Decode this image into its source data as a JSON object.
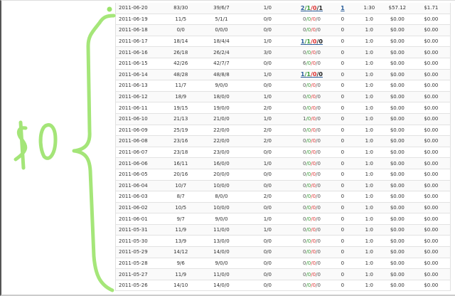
{
  "annotation": {
    "text": "$0",
    "color": "#9be36a"
  },
  "rows": [
    {
      "date": "2011-06-20",
      "c2": "83/30",
      "c3": "39/6/7",
      "c4": "1/0",
      "c5": [
        "2",
        "1",
        "0",
        "1"
      ],
      "c5_link": true,
      "c6": "1",
      "c6_link": true,
      "c7": "1:30",
      "c8": "$57.12",
      "c9": "$1.71"
    },
    {
      "date": "2011-06-19",
      "c2": "11/5",
      "c3": "5/1/1",
      "c4": "0/0",
      "c5": [
        "0",
        "0",
        "0",
        "0"
      ],
      "c6": "0",
      "c7": "1:0",
      "c8": "$0.00",
      "c9": "$0.00"
    },
    {
      "date": "2011-06-18",
      "c2": "0/0",
      "c3": "0/0/0",
      "c4": "0/0",
      "c5": [
        "0",
        "0",
        "0",
        "0"
      ],
      "c6": "0",
      "c7": "1:0",
      "c8": "$0.00",
      "c9": "$0.00"
    },
    {
      "date": "2011-06-17",
      "c2": "18/14",
      "c3": "18/4/4",
      "c4": "1/0",
      "c5": [
        "1",
        "1",
        "0",
        "0"
      ],
      "c5_link": true,
      "c6": "0",
      "c7": "1:0",
      "c8": "$0.00",
      "c9": "$0.00"
    },
    {
      "date": "2011-06-16",
      "c2": "26/18",
      "c3": "26/2/4",
      "c4": "3/0",
      "c5": [
        "0",
        "0",
        "0",
        "0"
      ],
      "c6": "0",
      "c7": "1:0",
      "c8": "$0.00",
      "c9": "$0.00"
    },
    {
      "date": "2011-06-15",
      "c2": "42/26",
      "c3": "42/7/7",
      "c4": "0/0",
      "c5": [
        "6",
        "0",
        "0",
        "0"
      ],
      "c6": "0",
      "c7": "1:0",
      "c8": "$0.00",
      "c9": "$0.00"
    },
    {
      "date": "2011-06-14",
      "c2": "48/28",
      "c3": "48/8/8",
      "c4": "1/0",
      "c5": [
        "1",
        "1",
        "0",
        "0"
      ],
      "c5_link": true,
      "c6": "0",
      "c7": "1:0",
      "c8": "$0.00",
      "c9": "$0.00"
    },
    {
      "date": "2011-06-13",
      "c2": "11/7",
      "c3": "9/0/0",
      "c4": "0/0",
      "c5": [
        "0",
        "0",
        "0",
        "0"
      ],
      "c6": "0",
      "c7": "1:0",
      "c8": "$0.00",
      "c9": "$0.00"
    },
    {
      "date": "2011-06-12",
      "c2": "18/9",
      "c3": "18/0/0",
      "c4": "1/0",
      "c5": [
        "0",
        "0",
        "0",
        "0"
      ],
      "c6": "0",
      "c7": "1:0",
      "c8": "$0.00",
      "c9": "$0.00"
    },
    {
      "date": "2011-06-11",
      "c2": "19/15",
      "c3": "19/0/0",
      "c4": "2/0",
      "c5": [
        "0",
        "0",
        "0",
        "0"
      ],
      "c6": "0",
      "c7": "1:0",
      "c8": "$0.00",
      "c9": "$0.00"
    },
    {
      "date": "2011-06-10",
      "c2": "21/13",
      "c3": "21/0/0",
      "c4": "1/0",
      "c5": [
        "1",
        "0",
        "0",
        "0"
      ],
      "c6": "0",
      "c7": "1:0",
      "c8": "$0.00",
      "c9": "$0.00"
    },
    {
      "date": "2011-06-09",
      "c2": "25/19",
      "c3": "22/0/0",
      "c4": "2/0",
      "c5": [
        "0",
        "0",
        "0",
        "0"
      ],
      "c6": "0",
      "c7": "1:0",
      "c8": "$0.00",
      "c9": "$0.00"
    },
    {
      "date": "2011-06-08",
      "c2": "23/16",
      "c3": "22/0/0",
      "c4": "2/0",
      "c5": [
        "0",
        "0",
        "0",
        "0"
      ],
      "c6": "0",
      "c7": "1:0",
      "c8": "$0.00",
      "c9": "$0.00"
    },
    {
      "date": "2011-06-07",
      "c2": "23/18",
      "c3": "23/0/0",
      "c4": "0/0",
      "c5": [
        "0",
        "0",
        "0",
        "0"
      ],
      "c6": "0",
      "c7": "1:0",
      "c8": "$0.00",
      "c9": "$0.00"
    },
    {
      "date": "2011-06-06",
      "c2": "16/11",
      "c3": "16/0/0",
      "c4": "1/0",
      "c5": [
        "0",
        "0",
        "0",
        "0"
      ],
      "c6": "0",
      "c7": "1:0",
      "c8": "$0.00",
      "c9": "$0.00"
    },
    {
      "date": "2011-06-05",
      "c2": "20/16",
      "c3": "20/0/0",
      "c4": "0/0",
      "c5": [
        "0",
        "0",
        "0",
        "0"
      ],
      "c6": "0",
      "c7": "1:0",
      "c8": "$0.00",
      "c9": "$0.00"
    },
    {
      "date": "2011-06-04",
      "c2": "10/7",
      "c3": "10/0/0",
      "c4": "0/0",
      "c5": [
        "0",
        "0",
        "0",
        "0"
      ],
      "c6": "0",
      "c7": "1:0",
      "c8": "$0.00",
      "c9": "$0.00"
    },
    {
      "date": "2011-06-03",
      "c2": "8/7",
      "c3": "8/0/0",
      "c4": "2/0",
      "c5": [
        "0",
        "0",
        "0",
        "0"
      ],
      "c6": "0",
      "c7": "1:0",
      "c8": "$0.00",
      "c9": "$0.00"
    },
    {
      "date": "2011-06-02",
      "c2": "10/5",
      "c3": "10/0/0",
      "c4": "0/0",
      "c5": [
        "0",
        "0",
        "0",
        "0"
      ],
      "c6": "0",
      "c7": "1:0",
      "c8": "$0.00",
      "c9": "$0.00"
    },
    {
      "date": "2011-06-01",
      "c2": "9/7",
      "c3": "9/0/0",
      "c4": "1/0",
      "c5": [
        "0",
        "0",
        "0",
        "0"
      ],
      "c6": "0",
      "c7": "1:0",
      "c8": "$0.00",
      "c9": "$0.00"
    },
    {
      "date": "2011-05-31",
      "c2": "11/9",
      "c3": "11/0/0",
      "c4": "1/0",
      "c5": [
        "0",
        "0",
        "0",
        "0"
      ],
      "c6": "0",
      "c7": "1:0",
      "c8": "$0.00",
      "c9": "$0.00"
    },
    {
      "date": "2011-05-30",
      "c2": "13/9",
      "c3": "13/0/0",
      "c4": "0/0",
      "c5": [
        "0",
        "0",
        "0",
        "0"
      ],
      "c6": "0",
      "c7": "1:0",
      "c8": "$0.00",
      "c9": "$0.00"
    },
    {
      "date": "2011-05-29",
      "c2": "14/12",
      "c3": "14/0/0",
      "c4": "0/0",
      "c5": [
        "0",
        "0",
        "0",
        "0"
      ],
      "c6": "0",
      "c7": "1:0",
      "c8": "$0.00",
      "c9": "$0.00"
    },
    {
      "date": "2011-05-28",
      "c2": "9/6",
      "c3": "9/0/0",
      "c4": "0/0",
      "c5": [
        "0",
        "0",
        "0",
        "0"
      ],
      "c6": "0",
      "c7": "1:0",
      "c8": "$0.00",
      "c9": "$0.00"
    },
    {
      "date": "2011-05-27",
      "c2": "11/9",
      "c3": "11/0/0",
      "c4": "0/0",
      "c5": [
        "0",
        "0",
        "0",
        "0"
      ],
      "c6": "0",
      "c7": "1:0",
      "c8": "$0.00",
      "c9": "$0.00"
    },
    {
      "date": "2011-05-26",
      "c2": "14/10",
      "c3": "14/0/0",
      "c4": "0/0",
      "c5": [
        "0",
        "0",
        "0",
        "0"
      ],
      "c6": "0",
      "c7": "1:0",
      "c8": "$0.00",
      "c9": "$0.00"
    }
  ]
}
